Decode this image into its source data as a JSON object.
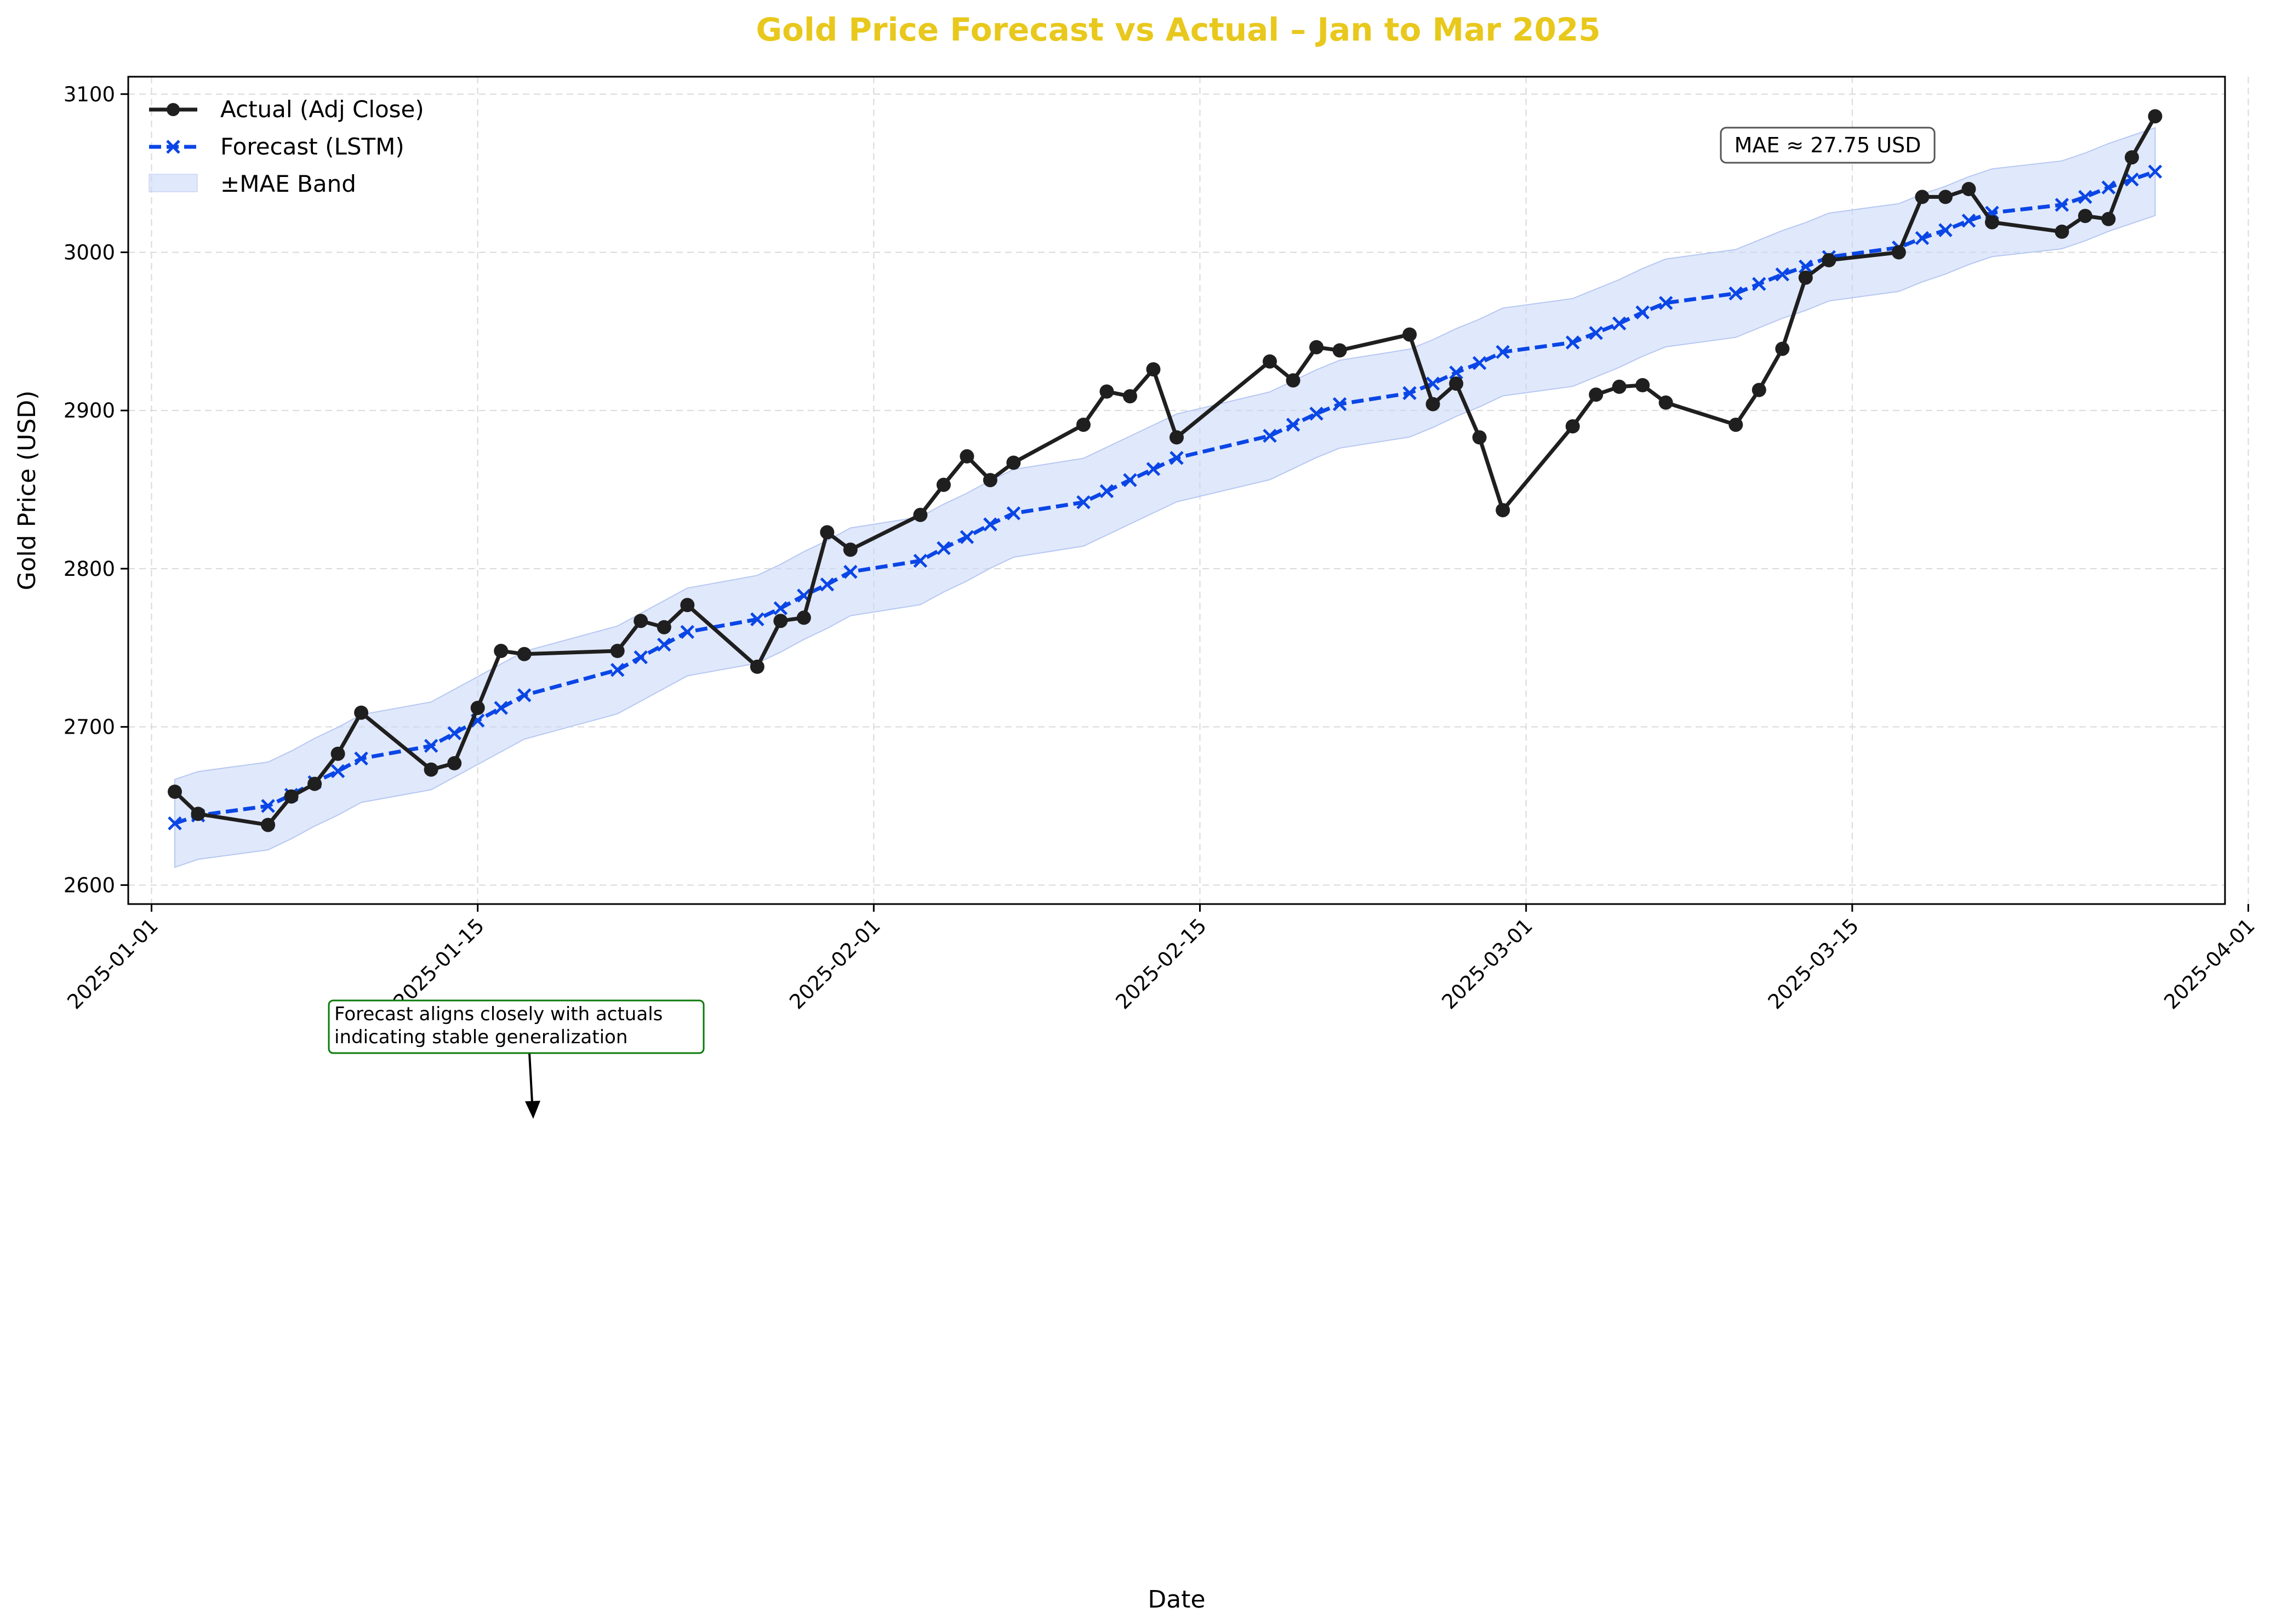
{
  "chart_data": {
    "type": "line",
    "title": "Gold Price Forecast vs Actual – Jan to Mar 2025",
    "xlabel": "Date",
    "ylabel": "Gold Price (USD)",
    "xlim": [
      "2024-12-31",
      "2025-03-31"
    ],
    "ylim": [
      2588,
      3111
    ],
    "x_tick_labels": [
      "2025-01-01",
      "2025-01-15",
      "2025-02-01",
      "2025-02-15",
      "2025-03-01",
      "2025-03-15",
      "2025-04-01"
    ],
    "y_ticks": [
      2600,
      2700,
      2800,
      2900,
      3000,
      3100
    ],
    "grid": true,
    "legend_position": "top-left",
    "mae": 27.75,
    "mae_label": "MAE ≈ 27.75 USD",
    "annotation": {
      "lines": [
        "Forecast aligns closely with actuals",
        "indicating stable generalization"
      ],
      "arrow_target": {
        "x": "2025-01-16",
        "y": 2712
      }
    },
    "series": [
      {
        "name": "Actual (Adj Close)",
        "color": "#1f1f1f",
        "marker": "circle",
        "points": [
          [
            "2025-01-02",
            2659
          ],
          [
            "2025-01-03",
            2645
          ],
          [
            "2025-01-06",
            2638
          ],
          [
            "2025-01-07",
            2656
          ],
          [
            "2025-01-08",
            2664
          ],
          [
            "2025-01-09",
            2683
          ],
          [
            "2025-01-10",
            2709
          ],
          [
            "2025-01-13",
            2673
          ],
          [
            "2025-01-14",
            2677
          ],
          [
            "2025-01-15",
            2712
          ],
          [
            "2025-01-16",
            2748
          ],
          [
            "2025-01-17",
            2746
          ],
          [
            "2025-01-21",
            2748
          ],
          [
            "2025-01-22",
            2767
          ],
          [
            "2025-01-23",
            2763
          ],
          [
            "2025-01-24",
            2777
          ],
          [
            "2025-01-27",
            2738
          ],
          [
            "2025-01-28",
            2767
          ],
          [
            "2025-01-29",
            2769
          ],
          [
            "2025-01-30",
            2823
          ],
          [
            "2025-01-31",
            2812
          ],
          [
            "2025-02-03",
            2834
          ],
          [
            "2025-02-04",
            2853
          ],
          [
            "2025-02-05",
            2871
          ],
          [
            "2025-02-06",
            2856
          ],
          [
            "2025-02-07",
            2867
          ],
          [
            "2025-02-10",
            2891
          ],
          [
            "2025-02-11",
            2912
          ],
          [
            "2025-02-12",
            2909
          ],
          [
            "2025-02-13",
            2926
          ],
          [
            "2025-02-14",
            2883
          ],
          [
            "2025-02-18",
            2931
          ],
          [
            "2025-02-19",
            2919
          ],
          [
            "2025-02-20",
            2940
          ],
          [
            "2025-02-21",
            2938
          ],
          [
            "2025-02-24",
            2948
          ],
          [
            "2025-02-25",
            2904
          ],
          [
            "2025-02-26",
            2917
          ],
          [
            "2025-02-27",
            2883
          ],
          [
            "2025-02-28",
            2837
          ],
          [
            "2025-03-03",
            2890
          ],
          [
            "2025-03-04",
            2910
          ],
          [
            "2025-03-05",
            2915
          ],
          [
            "2025-03-06",
            2916
          ],
          [
            "2025-03-07",
            2905
          ],
          [
            "2025-03-10",
            2891
          ],
          [
            "2025-03-11",
            2913
          ],
          [
            "2025-03-12",
            2939
          ],
          [
            "2025-03-13",
            2984
          ],
          [
            "2025-03-14",
            2995
          ],
          [
            "2025-03-17",
            3000
          ],
          [
            "2025-03-18",
            3035
          ],
          [
            "2025-03-19",
            3035
          ],
          [
            "2025-03-20",
            3040
          ],
          [
            "2025-03-21",
            3019
          ],
          [
            "2025-03-24",
            3013
          ],
          [
            "2025-03-25",
            3023
          ],
          [
            "2025-03-26",
            3021
          ],
          [
            "2025-03-27",
            3060
          ],
          [
            "2025-03-28",
            3086
          ]
        ]
      },
      {
        "name": "Forecast (LSTM)",
        "color": "#0a46e6",
        "marker": "x",
        "points": [
          [
            "2025-01-02",
            2639
          ],
          [
            "2025-01-03",
            2644
          ],
          [
            "2025-01-06",
            2650
          ],
          [
            "2025-01-07",
            2657
          ],
          [
            "2025-01-08",
            2665
          ],
          [
            "2025-01-09",
            2672
          ],
          [
            "2025-01-10",
            2680
          ],
          [
            "2025-01-13",
            2688
          ],
          [
            "2025-01-14",
            2696
          ],
          [
            "2025-01-15",
            2704
          ],
          [
            "2025-01-16",
            2712
          ],
          [
            "2025-01-17",
            2720
          ],
          [
            "2025-01-21",
            2736
          ],
          [
            "2025-01-22",
            2744
          ],
          [
            "2025-01-23",
            2752
          ],
          [
            "2025-01-24",
            2760
          ],
          [
            "2025-01-27",
            2768
          ],
          [
            "2025-01-28",
            2775
          ],
          [
            "2025-01-29",
            2783
          ],
          [
            "2025-01-30",
            2790
          ],
          [
            "2025-01-31",
            2798
          ],
          [
            "2025-02-03",
            2805
          ],
          [
            "2025-02-04",
            2813
          ],
          [
            "2025-02-05",
            2820
          ],
          [
            "2025-02-06",
            2828
          ],
          [
            "2025-02-07",
            2835
          ],
          [
            "2025-02-10",
            2842
          ],
          [
            "2025-02-11",
            2849
          ],
          [
            "2025-02-12",
            2856
          ],
          [
            "2025-02-13",
            2863
          ],
          [
            "2025-02-14",
            2870
          ],
          [
            "2025-02-18",
            2884
          ],
          [
            "2025-02-19",
            2891
          ],
          [
            "2025-02-20",
            2898
          ],
          [
            "2025-02-21",
            2904
          ],
          [
            "2025-02-24",
            2911
          ],
          [
            "2025-02-25",
            2917
          ],
          [
            "2025-02-26",
            2924
          ],
          [
            "2025-02-27",
            2930
          ],
          [
            "2025-02-28",
            2937
          ],
          [
            "2025-03-03",
            2943
          ],
          [
            "2025-03-04",
            2949
          ],
          [
            "2025-03-05",
            2955
          ],
          [
            "2025-03-06",
            2962
          ],
          [
            "2025-03-07",
            2968
          ],
          [
            "2025-03-10",
            2974
          ],
          [
            "2025-03-11",
            2980
          ],
          [
            "2025-03-12",
            2986
          ],
          [
            "2025-03-13",
            2991
          ],
          [
            "2025-03-14",
            2997
          ],
          [
            "2025-03-17",
            3003
          ],
          [
            "2025-03-18",
            3009
          ],
          [
            "2025-03-19",
            3014
          ],
          [
            "2025-03-20",
            3020
          ],
          [
            "2025-03-21",
            3025
          ],
          [
            "2025-03-24",
            3030
          ],
          [
            "2025-03-25",
            3035
          ],
          [
            "2025-03-26",
            3041
          ],
          [
            "2025-03-27",
            3046
          ],
          [
            "2025-03-28",
            3051
          ]
        ]
      },
      {
        "name": "±MAE Band",
        "color": "#c7d6f8",
        "type": "band",
        "around": "Forecast (LSTM)",
        "width": 27.75
      }
    ]
  },
  "colors": {
    "title": "#e8c81c",
    "grid": "#d9d9d9",
    "annotation_border": "#0a7a0a",
    "mae_border": "#555555"
  }
}
